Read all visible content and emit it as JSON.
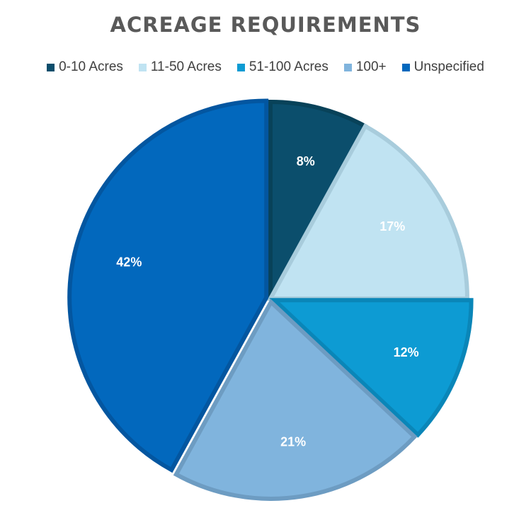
{
  "chart_data": {
    "type": "pie",
    "title": "ACREAGE REQUIREMENTS",
    "legend_position": "top",
    "categories": [
      "0-10 Acres",
      "11-50 Acres",
      "51-100 Acres",
      "100+",
      "Unspecified"
    ],
    "values": [
      8,
      17,
      12,
      21,
      42
    ],
    "labels": [
      "8%",
      "17%",
      "12%",
      "21%",
      "42%"
    ],
    "colors": [
      "#0b4e6c",
      "#c0e3f2",
      "#0d9bd3",
      "#80b4dd",
      "#0268bd"
    ],
    "border_colors": [
      "#084259",
      "#a8ccdc",
      "#0a86b8",
      "#6d9cc2",
      "#0356a0"
    ]
  }
}
